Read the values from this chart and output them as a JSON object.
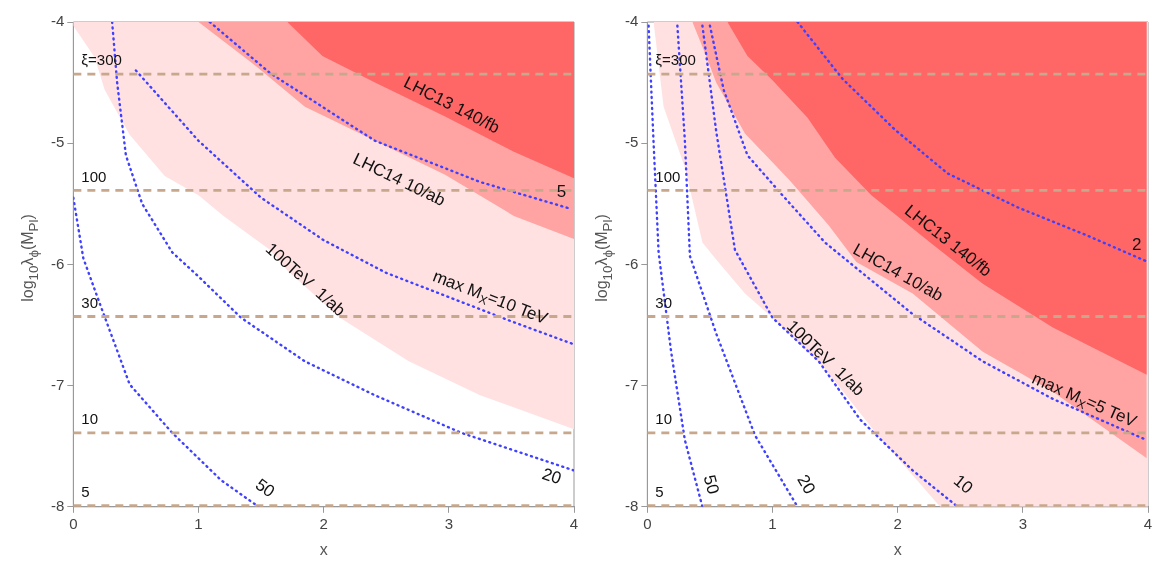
{
  "chart_data": [
    {
      "type": "area",
      "xlim": [
        0,
        4
      ],
      "ylim": [
        -8,
        -4
      ],
      "xticks": [
        0,
        1,
        2,
        3,
        4
      ],
      "yticks": [
        -8,
        -7,
        -6,
        -5,
        -4
      ],
      "xlabel": "x",
      "ylabel": "log$_{10}$λ$_{ϕ}$(M$_{Pl}$)",
      "grid": false,
      "legend": false,
      "marker": "none",
      "series": [
        {
          "type": "area",
          "name": "100TeV  1/ab",
          "color": "#ffe1e1",
          "x": [
            0,
            0.17,
            0.25,
            0.45,
            0.73,
            1.0,
            1.2,
            1.57,
            1.71,
            2.13,
            2.68,
            3.25,
            4.0
          ],
          "values": [
            -4.03,
            -4.29,
            -4.56,
            -4.93,
            -5.27,
            -5.43,
            -5.6,
            -5.88,
            -6.05,
            -6.44,
            -6.8,
            -7.08,
            -7.36
          ]
        },
        {
          "type": "area",
          "name": "LHC14 10/ab",
          "color": "#ffa3a3",
          "x": [
            1.0,
            1.43,
            1.85,
            2.41,
            2.97,
            3.52,
            4.0
          ],
          "values": [
            -4.0,
            -4.34,
            -4.7,
            -4.98,
            -5.26,
            -5.6,
            -5.79
          ]
        },
        {
          "type": "area",
          "name": "LHC13 140/fb",
          "color": "#ff6666",
          "x": [
            1.71,
            1.99,
            2.41,
            2.97,
            3.52,
            4.0
          ],
          "values": [
            -4.0,
            -4.28,
            -4.5,
            -4.78,
            -5.07,
            -5.29
          ]
        },
        {
          "type": "line",
          "name": "50",
          "color": "#4040ff",
          "line_style": "dotted",
          "x": [
            0,
            0.08,
            0.21,
            0.45,
            0.79,
            1.18,
            1.48
          ],
          "values": [
            -5.45,
            -5.95,
            -6.32,
            -6.99,
            -7.39,
            -7.78,
            -8.0
          ]
        },
        {
          "type": "line",
          "name": "20",
          "color": "#4040ff",
          "line_style": "dotted",
          "x": [
            0.31,
            0.35,
            0.42,
            0.55,
            0.79,
            1.0,
            1.34,
            1.85,
            2.41,
            3.1,
            4.0
          ],
          "values": [
            -4.0,
            -4.5,
            -5.1,
            -5.5,
            -5.9,
            -6.1,
            -6.44,
            -6.8,
            -7.08,
            -7.39,
            -7.7
          ]
        },
        {
          "type": "line",
          "name": "max M$_{X}$=10 TeV",
          "color": "#4040ff",
          "line_style": "dotted",
          "x": [
            0.5,
            1.0,
            1.5,
            2.0,
            2.5,
            3.0,
            3.5,
            4.0
          ],
          "values": [
            -4.4,
            -4.98,
            -5.45,
            -5.8,
            -6.07,
            -6.27,
            -6.47,
            -6.66
          ]
        },
        {
          "type": "line",
          "name": "5",
          "color": "#4040ff",
          "line_style": "dotted",
          "x": [
            1.09,
            1.57,
            2.41,
            3.25,
            3.97
          ],
          "values": [
            -4.0,
            -4.42,
            -4.98,
            -5.32,
            -5.54
          ]
        },
        {
          "type": "line",
          "name": "ξ=300",
          "color": "#c8a88c",
          "line_style": "dashed",
          "x": [
            0,
            4
          ],
          "values": [
            -4.43,
            -4.43
          ]
        },
        {
          "type": "line",
          "name": "100",
          "color": "#c8a88c",
          "line_style": "dashed",
          "x": [
            0,
            4
          ],
          "values": [
            -5.39,
            -5.39
          ]
        },
        {
          "type": "line",
          "name": "30",
          "color": "#c8a88c",
          "line_style": "dashed",
          "x": [
            0,
            4
          ],
          "values": [
            -6.43,
            -6.43
          ]
        },
        {
          "type": "line",
          "name": "10",
          "color": "#c8a88c",
          "line_style": "dashed",
          "x": [
            0,
            4
          ],
          "values": [
            -7.39,
            -7.39
          ]
        },
        {
          "type": "line",
          "name": "5",
          "color": "#c8a88c",
          "line_style": "dashed",
          "x": [
            0,
            4
          ],
          "values": [
            -7.99,
            -7.99
          ]
        }
      ]
    },
    {
      "type": "area",
      "xlim": [
        0,
        4
      ],
      "ylim": [
        -8,
        -4
      ],
      "xticks": [
        0,
        1,
        2,
        3,
        4
      ],
      "yticks": [
        -8,
        -7,
        -6,
        -5,
        -4
      ],
      "xlabel": "x",
      "ylabel": "log$_{10}$λ$_{ϕ}$(M$_{Pl}$)",
      "grid": false,
      "legend": false,
      "marker": "none",
      "series": [
        {
          "type": "area",
          "name": "100TeV  1/ab",
          "color": "#ffe1e1",
          "x": [
            0.05,
            0.13,
            0.3,
            0.44,
            0.55,
            0.78,
            1.0,
            1.42,
            1.84,
            2.34,
            4.0
          ],
          "values": [
            -4.0,
            -4.7,
            -5.2,
            -5.82,
            -5.96,
            -6.24,
            -6.44,
            -6.86,
            -7.41,
            -8.0,
            -8.0
          ]
        },
        {
          "type": "area",
          "name": "LHC14 10/ab",
          "color": "#ffa3a3",
          "x": [
            0.36,
            0.47,
            0.55,
            0.78,
            1.14,
            1.45,
            1.67,
            2.12,
            2.68,
            3.24,
            3.99
          ],
          "values": [
            -4.0,
            -4.28,
            -4.5,
            -4.92,
            -5.31,
            -5.68,
            -5.98,
            -6.24,
            -6.72,
            -7.05,
            -7.6
          ]
        },
        {
          "type": "area",
          "name": "LHC13 140/fb",
          "color": "#ff6666",
          "x": [
            0.64,
            0.8,
            1.0,
            1.28,
            1.5,
            1.79,
            2.26,
            2.68,
            3.24,
            3.99
          ],
          "values": [
            -4.0,
            -4.28,
            -4.48,
            -4.79,
            -5.12,
            -5.43,
            -5.82,
            -6.16,
            -6.52,
            -6.91
          ]
        },
        {
          "type": "line",
          "name": "50",
          "color": "#4040ff",
          "line_style": "dotted",
          "x": [
            0.01,
            0.05,
            0.09,
            0.19,
            0.3,
            0.44
          ],
          "values": [
            -4.03,
            -5.0,
            -5.9,
            -6.72,
            -7.45,
            -8.0
          ]
        },
        {
          "type": "line",
          "name": "20",
          "color": "#4040ff",
          "line_style": "dotted",
          "x": [
            0.24,
            0.3,
            0.34,
            0.55,
            0.86,
            1.2
          ],
          "values": [
            -4.03,
            -4.98,
            -5.93,
            -6.57,
            -7.41,
            -8.0
          ]
        },
        {
          "type": "line",
          "name": "10",
          "color": "#4040ff",
          "line_style": "dotted",
          "x": [
            0.44,
            0.55,
            0.7,
            1.0,
            1.37,
            1.7,
            2.12,
            2.48
          ],
          "values": [
            -4.03,
            -4.9,
            -5.88,
            -6.44,
            -6.8,
            -7.28,
            -7.7,
            -8.0
          ]
        },
        {
          "type": "line",
          "name": "max M$_{X}$=5 TeV",
          "color": "#4040ff",
          "line_style": "dotted",
          "x": [
            0.5,
            0.61,
            0.8,
            1.08,
            1.42,
            2.12,
            2.68,
            3.24,
            3.99
          ],
          "values": [
            -4.03,
            -4.56,
            -5.1,
            -5.43,
            -5.82,
            -6.41,
            -6.8,
            -7.11,
            -7.45
          ]
        },
        {
          "type": "line",
          "name": "2",
          "color": "#4040ff",
          "line_style": "dotted",
          "x": [
            1.2,
            1.56,
            1.98,
            2.4,
            2.96,
            3.51,
            4.0
          ],
          "values": [
            -4.0,
            -4.47,
            -4.89,
            -5.25,
            -5.53,
            -5.76,
            -5.98
          ]
        },
        {
          "type": "line",
          "name": "ξ=300",
          "color": "#c8a88c",
          "line_style": "dashed",
          "x": [
            0,
            4
          ],
          "values": [
            -4.43,
            -4.43
          ]
        },
        {
          "type": "line",
          "name": "100",
          "color": "#c8a88c",
          "line_style": "dashed",
          "x": [
            0,
            4
          ],
          "values": [
            -5.39,
            -5.39
          ]
        },
        {
          "type": "line",
          "name": "30",
          "color": "#c8a88c",
          "line_style": "dashed",
          "x": [
            0,
            4
          ],
          "values": [
            -6.43,
            -6.43
          ]
        },
        {
          "type": "line",
          "name": "10",
          "color": "#c8a88c",
          "line_style": "dashed",
          "x": [
            0,
            4
          ],
          "values": [
            -7.39,
            -7.39
          ]
        },
        {
          "type": "line",
          "name": "5",
          "color": "#c8a88c",
          "line_style": "dashed",
          "x": [
            0,
            4
          ],
          "values": [
            -7.99,
            -7.99
          ]
        }
      ]
    }
  ]
}
